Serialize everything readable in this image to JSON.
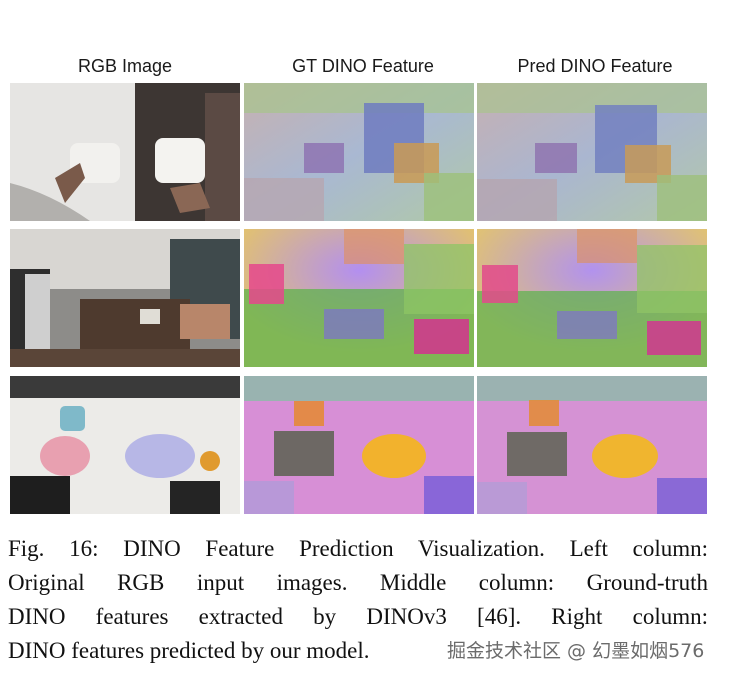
{
  "figure": {
    "column_headers": [
      "RGB Image",
      "GT DINO Feature",
      "Pred DINO Feature"
    ],
    "rows": [
      {
        "scene": "bed-towels"
      },
      {
        "scene": "room-robot"
      },
      {
        "scene": "table-toys"
      }
    ]
  },
  "caption": {
    "lines": [
      "Fig. 16: DINO Feature Prediction Visualization. Left column:",
      "Original RGB input images. Middle column: Ground-truth",
      "DINO features extracted by DINOv3 [46]. Right column:",
      "DINO features predicted by our model."
    ]
  },
  "watermark": "掘金技术社区 @ 幻墨如烟576"
}
